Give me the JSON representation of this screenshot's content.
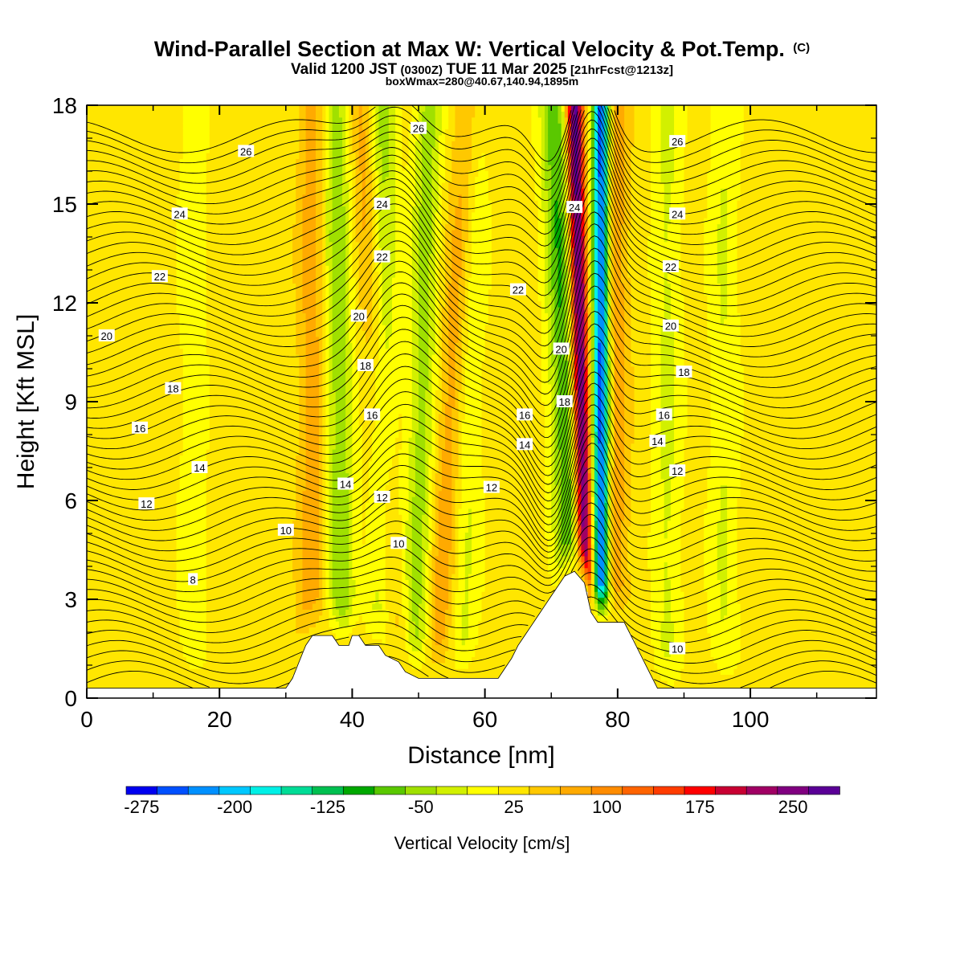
{
  "title": {
    "main": "Wind-Parallel Section at Max W: Vertical Velocity & Pot.Temp.",
    "copyright": "(C)",
    "valid_prefix": "Valid 1200 JST",
    "valid_utc": "(0300Z)",
    "valid_date": "TUE 11 Mar 2025",
    "forecast": "[21hrFcst@1213z]",
    "box_info": "boxWmax=280@40.67,140.94,1895m"
  },
  "chart_data": {
    "type": "heatmap",
    "xlabel": "Distance [nm]",
    "ylabel": "Height [Kft MSL]",
    "x_ticks": [
      "0",
      "20",
      "40",
      "60",
      "80",
      "100"
    ],
    "y_ticks": [
      "0",
      "3",
      "6",
      "9",
      "12",
      "15",
      "18"
    ],
    "xlim": [
      0,
      119
    ],
    "ylim": [
      0,
      18
    ],
    "colorbar": {
      "title": "Vertical Velocity [cm/s]",
      "tick_labels": [
        "-275",
        "-200",
        "-125",
        "-50",
        "25",
        "100",
        "175",
        "250"
      ],
      "colors": [
        "#0000f0",
        "#0050ff",
        "#0090ff",
        "#00c8ff",
        "#00f0e6",
        "#00dc96",
        "#00c050",
        "#00a800",
        "#5ac800",
        "#a0e000",
        "#d2f000",
        "#ffff00",
        "#ffe600",
        "#ffc800",
        "#ffaa00",
        "#ff8c00",
        "#ff6400",
        "#ff3c00",
        "#ff0000",
        "#c80032",
        "#a00064",
        "#800080",
        "#5a0096"
      ],
      "range": [
        -300,
        275
      ]
    },
    "terrain": [
      {
        "x": 0,
        "h": 0.3
      },
      {
        "x": 30,
        "h": 0.3
      },
      {
        "x": 31,
        "h": 0.6
      },
      {
        "x": 32,
        "h": 1.1
      },
      {
        "x": 33,
        "h": 1.6
      },
      {
        "x": 34,
        "h": 1.9
      },
      {
        "x": 37,
        "h": 1.9
      },
      {
        "x": 38,
        "h": 1.6
      },
      {
        "x": 39.5,
        "h": 1.6
      },
      {
        "x": 40,
        "h": 1.9
      },
      {
        "x": 41,
        "h": 1.9
      },
      {
        "x": 42,
        "h": 1.6
      },
      {
        "x": 44,
        "h": 1.6
      },
      {
        "x": 45,
        "h": 1.3
      },
      {
        "x": 47,
        "h": 1.1
      },
      {
        "x": 48,
        "h": 0.8
      },
      {
        "x": 50,
        "h": 0.6
      },
      {
        "x": 62,
        "h": 0.6
      },
      {
        "x": 63,
        "h": 0.9
      },
      {
        "x": 64,
        "h": 1.2
      },
      {
        "x": 65,
        "h": 1.6
      },
      {
        "x": 66,
        "h": 1.9
      },
      {
        "x": 67,
        "h": 2.2
      },
      {
        "x": 68,
        "h": 2.5
      },
      {
        "x": 69,
        "h": 2.8
      },
      {
        "x": 70,
        "h": 3.1
      },
      {
        "x": 71,
        "h": 3.4
      },
      {
        "x": 72,
        "h": 3.7
      },
      {
        "x": 73.5,
        "h": 3.85
      },
      {
        "x": 75,
        "h": 3.5
      },
      {
        "x": 76,
        "h": 2.6
      },
      {
        "x": 77,
        "h": 2.3
      },
      {
        "x": 81,
        "h": 2.3
      },
      {
        "x": 82,
        "h": 1.9
      },
      {
        "x": 83,
        "h": 1.5
      },
      {
        "x": 84,
        "h": 1.1
      },
      {
        "x": 85,
        "h": 0.7
      },
      {
        "x": 86,
        "h": 0.3
      },
      {
        "x": 119,
        "h": 0.3
      }
    ],
    "theta_contour_labels": [
      {
        "text": "26",
        "x": 24,
        "y": 16.6
      },
      {
        "text": "24",
        "x": 14,
        "y": 14.7
      },
      {
        "text": "22",
        "x": 11,
        "y": 12.8
      },
      {
        "text": "20",
        "x": 3,
        "y": 11.0
      },
      {
        "text": "18",
        "x": 13,
        "y": 9.4
      },
      {
        "text": "16",
        "x": 8,
        "y": 8.2
      },
      {
        "text": "14",
        "x": 17,
        "y": 7.0
      },
      {
        "text": "12",
        "x": 9,
        "y": 5.9
      },
      {
        "text": "10",
        "x": 30,
        "y": 5.1
      },
      {
        "text": "8",
        "x": 16,
        "y": 3.6
      },
      {
        "text": "26",
        "x": 50,
        "y": 17.3
      },
      {
        "text": "24",
        "x": 44.5,
        "y": 15.0
      },
      {
        "text": "22",
        "x": 44.5,
        "y": 13.4
      },
      {
        "text": "20",
        "x": 41,
        "y": 11.6
      },
      {
        "text": "18",
        "x": 42,
        "y": 10.1
      },
      {
        "text": "16",
        "x": 43,
        "y": 8.6
      },
      {
        "text": "14",
        "x": 39,
        "y": 6.5
      },
      {
        "text": "12",
        "x": 44.5,
        "y": 6.1
      },
      {
        "text": "10",
        "x": 47,
        "y": 4.7
      },
      {
        "text": "22",
        "x": 65,
        "y": 12.4
      },
      {
        "text": "20",
        "x": 71.5,
        "y": 10.6
      },
      {
        "text": "18",
        "x": 72,
        "y": 9.0
      },
      {
        "text": "16",
        "x": 66,
        "y": 8.6
      },
      {
        "text": "14",
        "x": 66,
        "y": 7.7
      },
      {
        "text": "12",
        "x": 61,
        "y": 6.4
      },
      {
        "text": "24",
        "x": 73.5,
        "y": 14.9
      },
      {
        "text": "26",
        "x": 89,
        "y": 16.9
      },
      {
        "text": "24",
        "x": 89,
        "y": 14.7
      },
      {
        "text": "22",
        "x": 88,
        "y": 13.1
      },
      {
        "text": "20",
        "x": 88,
        "y": 11.3
      },
      {
        "text": "18",
        "x": 90,
        "y": 9.9
      },
      {
        "text": "16",
        "x": 87,
        "y": 8.6
      },
      {
        "text": "14",
        "x": 86,
        "y": 7.8
      },
      {
        "text": "12",
        "x": 89,
        "y": 6.9
      },
      {
        "text": "10",
        "x": 89,
        "y": 1.5
      }
    ],
    "w_features": [
      {
        "x0": 38.5,
        "x1": 37.5,
        "w": -80
      },
      {
        "x0": 44.5,
        "x1": 44.5,
        "w": -75
      },
      {
        "x0": 46.5,
        "x1": 41.5,
        "w": 60
      },
      {
        "x0": 49.5,
        "x1": 51.5,
        "w": -70
      },
      {
        "x0": 52.5,
        "x1": 57.5,
        "w": 60
      },
      {
        "x0": 56.5,
        "x1": 58.5,
        "w": -40
      },
      {
        "x0": 73.5,
        "x1": 70.5,
        "w": -110
      },
      {
        "x0": 75.5,
        "x1": 73.5,
        "w": 260
      },
      {
        "x0": 77.5,
        "x1": 77.5,
        "w": -290
      },
      {
        "x0": 79.5,
        "x1": 79.5,
        "w": 60
      },
      {
        "x0": 87.5,
        "x1": 87.5,
        "w": -40
      },
      {
        "x0": 96,
        "x1": 96,
        "w": -35
      },
      {
        "x0": 34,
        "x1": 34,
        "w": 55
      },
      {
        "x0": 16,
        "x1": 16,
        "w": -25
      }
    ]
  }
}
